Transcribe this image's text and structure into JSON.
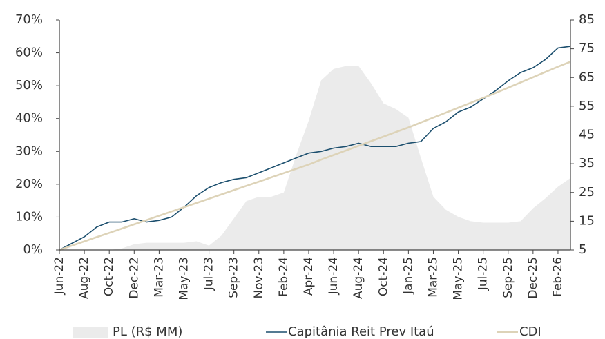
{
  "chart_data": {
    "type": "line",
    "categories": [
      "Jun-22",
      null,
      "Aug-22",
      null,
      "Oct-22",
      null,
      "Dec-22",
      null,
      "Mar-23",
      null,
      "May-23",
      null,
      "Jul-23",
      null,
      "Sep-23",
      null,
      "Nov-23",
      null,
      "Feb-24",
      null,
      "Apr-24",
      null,
      "Jun-24",
      null,
      "Aug-24",
      null,
      "Oct-24",
      null,
      "Jan-25",
      null,
      "Mar-25",
      null,
      "May-25",
      null,
      "Jul-25",
      null,
      "Sep-25",
      null,
      "Dec-25",
      null,
      "Feb-26",
      null
    ],
    "series": [
      {
        "name": "PL (R$ MM)",
        "type": "area",
        "axis": "y2",
        "color": "#ebebeb",
        "values": [
          5,
          5,
          5,
          5,
          5,
          5.5,
          7,
          7.5,
          7.5,
          7.5,
          7.5,
          8,
          6.5,
          10,
          16,
          22,
          23.5,
          23.5,
          25,
          38,
          50,
          64,
          68,
          69,
          69,
          63,
          56,
          54,
          51,
          37,
          23.5,
          19,
          16.5,
          15,
          14.5,
          14.5,
          14.5,
          15,
          19.5,
          23,
          27,
          30
        ]
      },
      {
        "name": "Capitânia Reit Prev Itaú",
        "type": "line",
        "color": "#1c4f6e",
        "values": [
          0,
          2,
          4,
          7,
          8.5,
          8.5,
          9.5,
          8.5,
          9,
          10,
          13,
          16.5,
          19,
          20.5,
          21.5,
          22,
          23.5,
          25,
          26.5,
          28,
          29.5,
          30,
          31,
          31.5,
          32.5,
          31.5,
          31.5,
          31.5,
          32.5,
          33,
          37,
          39,
          42,
          43.5,
          46,
          48.5,
          51.5,
          54,
          55.5,
          58,
          61.5,
          62
        ]
      },
      {
        "name": "CDI",
        "type": "line",
        "color": "#ddd3b8",
        "values": [
          0,
          1.3,
          2.6,
          3.9,
          5.2,
          6.5,
          7.8,
          9.1,
          10.4,
          11.7,
          13,
          14.3,
          15.6,
          16.9,
          18.2,
          19.5,
          20.8,
          22.1,
          23.4,
          24.7,
          26,
          27.5,
          28.9,
          30.3,
          31.7,
          33.1,
          34.5,
          35.9,
          37.3,
          38.8,
          40.3,
          41.8,
          43.3,
          44.8,
          46.3,
          47.8,
          49.4,
          51,
          52.6,
          54.2,
          55.8,
          57.3
        ]
      }
    ],
    "ylim": [
      0,
      70
    ],
    "yticks": [
      {
        "value": 0,
        "label": "0%"
      },
      {
        "value": 10,
        "label": "10%"
      },
      {
        "value": 20,
        "label": "20%"
      },
      {
        "value": 30,
        "label": "30%"
      },
      {
        "value": 40,
        "label": "40%"
      },
      {
        "value": 50,
        "label": "50%"
      },
      {
        "value": 60,
        "label": "60%"
      },
      {
        "value": 70,
        "label": "70%"
      }
    ],
    "y2lim": [
      5,
      85
    ],
    "y2ticks": [
      5,
      15,
      25,
      35,
      45,
      55,
      65,
      75,
      85
    ],
    "legend": "bottom"
  }
}
